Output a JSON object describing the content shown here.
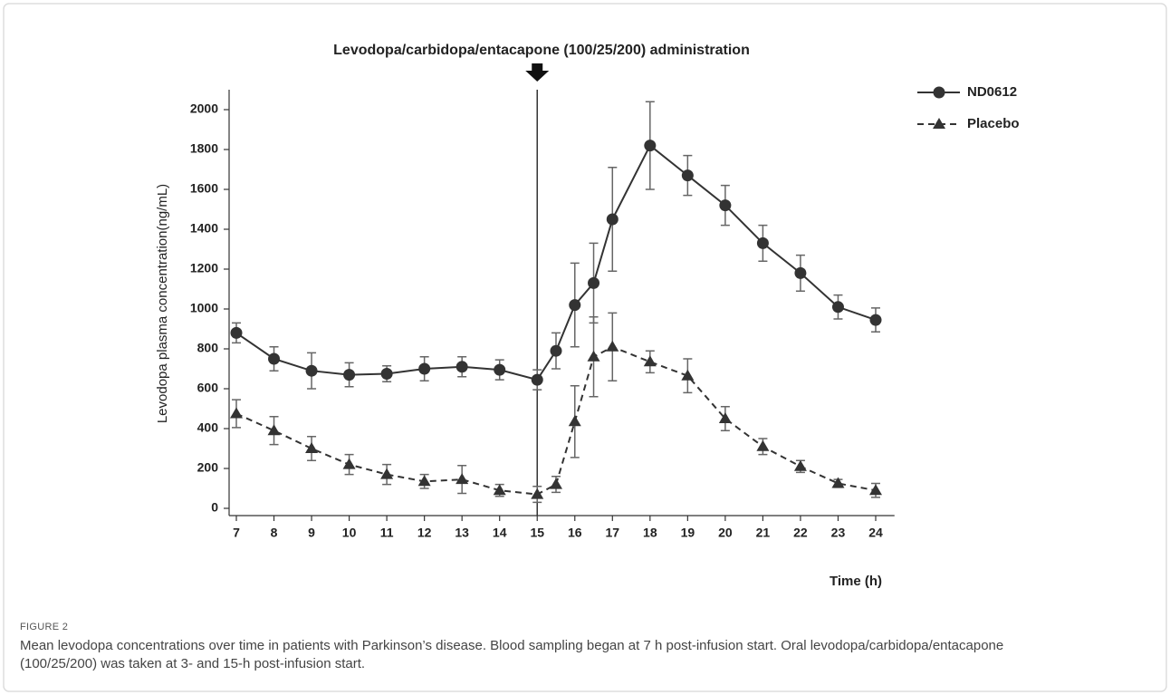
{
  "chart_data": {
    "type": "line",
    "annotation": {
      "text": "Levodopa/carbidopa/entacapone (100/25/200) administration",
      "x": 15
    },
    "xlabel": "Time (h)",
    "ylabel": "Levodopa plasma concentration(ng/mL)",
    "x": [
      7,
      8,
      9,
      10,
      11,
      12,
      13,
      14,
      15,
      15.5,
      16,
      16.5,
      17,
      18,
      19,
      20,
      21,
      22,
      23,
      24
    ],
    "series": [
      {
        "name": "ND0612",
        "color": "#333333",
        "marker": "circle",
        "dash": "solid",
        "values": [
          880,
          750,
          690,
          670,
          675,
          700,
          710,
          695,
          645,
          790,
          1020,
          1130,
          1450,
          1820,
          1670,
          1520,
          1330,
          1180,
          1010,
          945
        ],
        "errors": [
          50,
          60,
          90,
          60,
          40,
          60,
          50,
          50,
          50,
          90,
          210,
          200,
          260,
          220,
          100,
          100,
          90,
          90,
          60,
          60
        ]
      },
      {
        "name": "Placebo",
        "color": "#333333",
        "marker": "triangle",
        "dash": "dashed",
        "values": [
          475,
          390,
          300,
          220,
          170,
          135,
          145,
          90,
          70,
          120,
          435,
          760,
          810,
          735,
          665,
          450,
          310,
          210,
          125,
          90
        ],
        "errors": [
          70,
          70,
          60,
          50,
          50,
          35,
          70,
          30,
          40,
          40,
          180,
          200,
          170,
          55,
          85,
          60,
          40,
          30,
          20,
          35
        ]
      }
    ],
    "xlim": [
      7,
      24.5
    ],
    "xticks": [
      7,
      8,
      9,
      10,
      11,
      12,
      13,
      14,
      15,
      16,
      17,
      18,
      19,
      20,
      21,
      22,
      23,
      24
    ],
    "ylim": [
      0,
      2100
    ],
    "yticks": [
      0,
      200,
      400,
      600,
      800,
      1000,
      1200,
      1400,
      1600,
      1800,
      2000
    ],
    "grid": false,
    "legend": "top-right"
  },
  "caption": {
    "label": "FIGURE 2",
    "text": "Mean levodopa concentrations over time in patients with Parkinson’s disease. Blood sampling began at 7 h post-infusion start. Oral levodopa/carbidopa/entacapone (100/25/200) was taken at 3- and 15-h post-infusion start."
  }
}
